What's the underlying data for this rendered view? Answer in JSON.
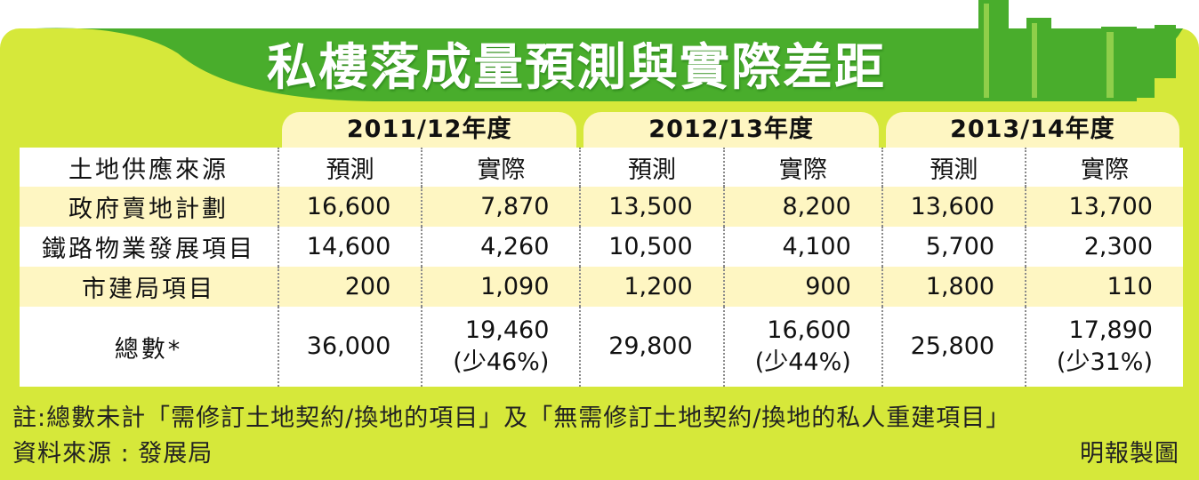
{
  "title": "私樓落成量預測與實際差距",
  "colors": {
    "panel": "#d6e83a",
    "banner": "#49ad2c",
    "pill": "#fef6c2"
  },
  "years": [
    "2011/12年度",
    "2012/13年度",
    "2013/14年度"
  ],
  "header": {
    "label": "土地供應來源",
    "cols": [
      "預測",
      "實際",
      "預測",
      "實際",
      "預測",
      "實際"
    ]
  },
  "rows": [
    {
      "label": "政府賣地計劃",
      "values": [
        "16,600",
        "7,870",
        "13,500",
        "8,200",
        "13,600",
        "13,700"
      ]
    },
    {
      "label": "鐵路物業發展項目",
      "values": [
        "14,600",
        "4,260",
        "10,500",
        "4,100",
        "5,700",
        "2,300"
      ]
    },
    {
      "label": "市建局項目",
      "values": [
        "200",
        "1,090",
        "1,200",
        "900",
        "1,800",
        "110"
      ]
    }
  ],
  "total": {
    "label": "總數*",
    "values": [
      "36,000",
      "19,460",
      "29,800",
      "16,600",
      "25,800",
      "17,890"
    ],
    "notes": [
      "",
      "(少46%)",
      "",
      "(少44%)",
      "",
      "(少31%)"
    ]
  },
  "footnote": "註:總數未計「需修訂土地契約/換地的項目」及「無需修訂土地契約/換地的私人重建項目」",
  "source": "資料來源 : 發展局",
  "credit": "明報製圖"
}
